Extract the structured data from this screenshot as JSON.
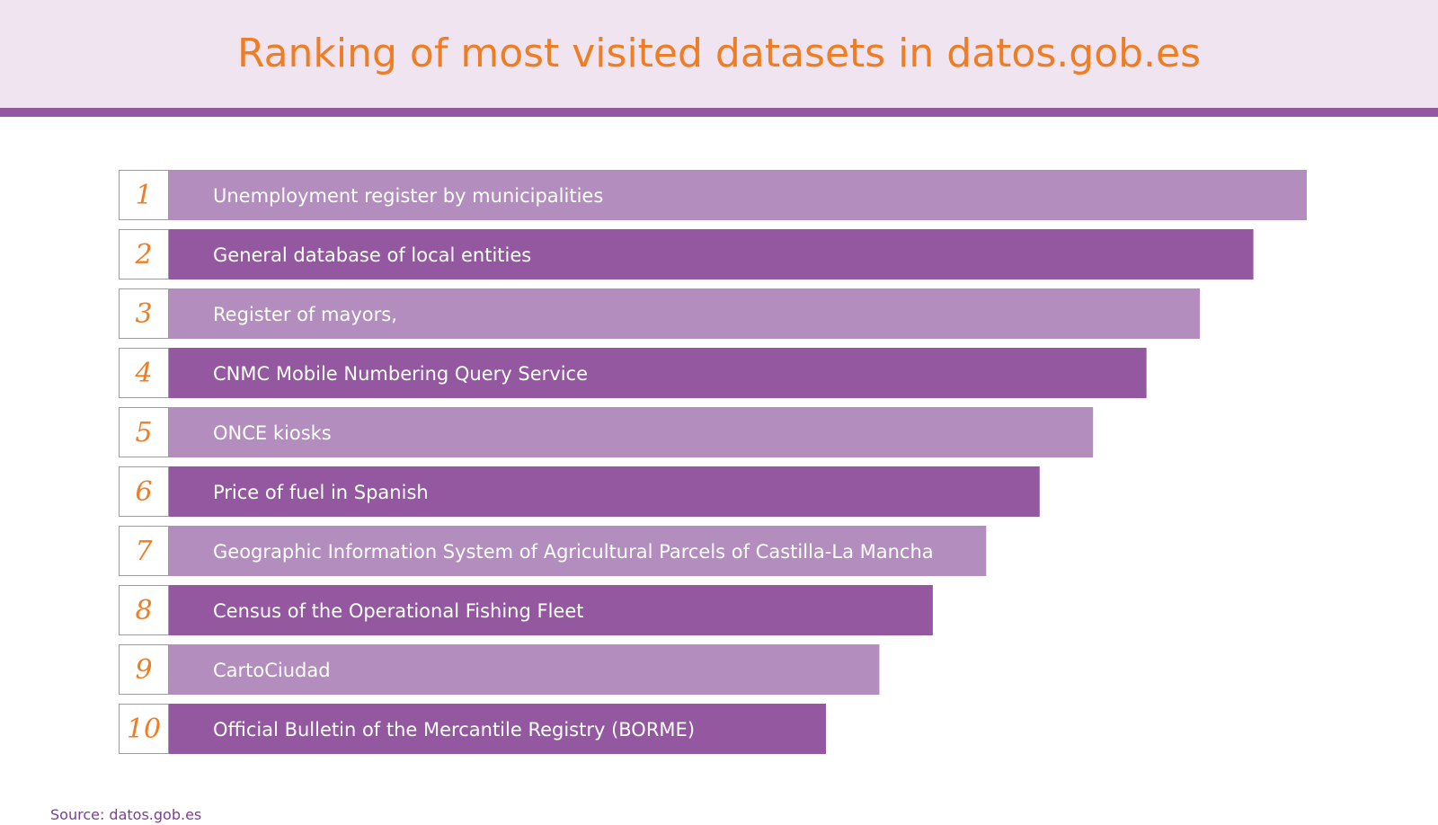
{
  "title": "Ranking of most visited datasets in datos.gob.es",
  "source": "Source: datos.gob.es",
  "colors": {
    "title": "#ee7d23",
    "header_bg": "#efe4ef",
    "header_rule": "#9358a0",
    "bar_light": "#b28dbd",
    "bar_dark": "#9358a0",
    "rank_text": "#ee7d23",
    "rank_border": "#9c9c9c",
    "source_text": "#7b3f92"
  },
  "chart_data": {
    "type": "bar",
    "orientation": "horizontal",
    "title": "Ranking of most visited datasets in datos.gob.es",
    "categories": [
      "Unemployment register by municipalities",
      "General database of local entities",
      "Register of mayors,",
      "CNMC Mobile Numbering Query Service",
      "ONCE kiosks",
      "Price of fuel in Spanish",
      "Geographic Information System of Agricultural Parcels of Castilla-La Mancha",
      "Census of the Operational Fishing Fleet",
      "CartoCiudad",
      "Official Bulletin of the Mercantile Registry (BORME)"
    ],
    "ranks": [
      "1",
      "2",
      "3",
      "4",
      "5",
      "6",
      "7",
      "8",
      "9",
      "10"
    ],
    "grid": false,
    "legend": "none"
  }
}
